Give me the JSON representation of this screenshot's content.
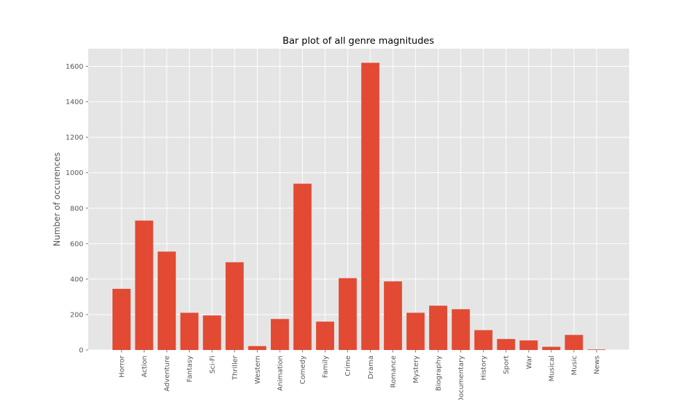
{
  "chart_data": {
    "type": "bar",
    "title": "Bar plot of all genre magnitudes",
    "xlabel": "",
    "ylabel": "Number of occurences",
    "ylim": [
      0,
      1700
    ],
    "yticks": [
      "0",
      "200",
      "400",
      "600",
      "800",
      "1000",
      "1200",
      "1400",
      "1600"
    ],
    "grid": true,
    "style": "ggplot",
    "categories": [
      "Horror",
      "Action",
      "Adventure",
      "Fantasy",
      "Sci-Fi",
      "Thriller",
      "Western",
      "Animation",
      "Comedy",
      "Family",
      "Crime",
      "Drama",
      "Romance",
      "Mystery",
      "Biography",
      "Documentary",
      "History",
      "Sport",
      "War",
      "Musical",
      "Music",
      "News"
    ],
    "values": [
      345,
      730,
      555,
      210,
      195,
      495,
      22,
      175,
      938,
      160,
      405,
      1620,
      387,
      210,
      250,
      230,
      112,
      62,
      54,
      18,
      85,
      3
    ],
    "colors": {
      "bar": "#E24A33",
      "background": "#E5E5E5",
      "grid": "#FFFFFF"
    }
  }
}
